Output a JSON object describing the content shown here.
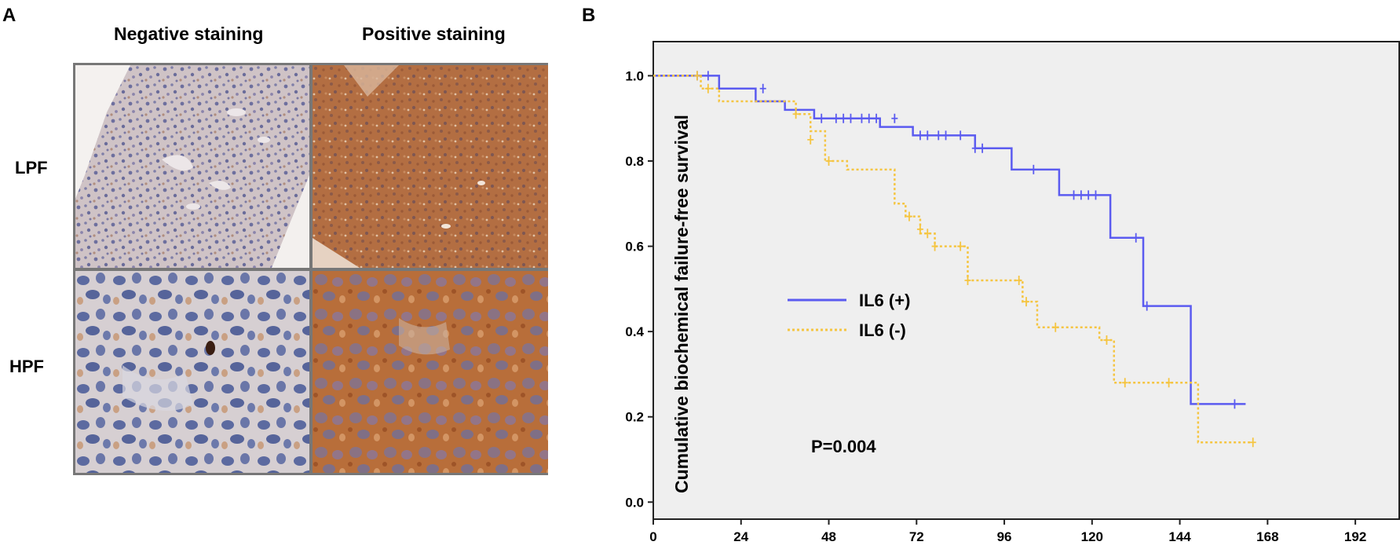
{
  "panel_a": {
    "label": "A",
    "columns": [
      "Negative staining",
      "Positive staining"
    ],
    "rows": [
      "LPF",
      "HPF"
    ]
  },
  "panel_b": {
    "label": "B"
  },
  "chart_data": {
    "type": "line",
    "subtype": "kaplan-meier step",
    "title": "",
    "xlabel": "",
    "ylabel": "Cumulative biochemical failure-free survival",
    "xlim": [
      0,
      204
    ],
    "ylim": [
      -0.04,
      1.08
    ],
    "xticks": [
      0,
      24,
      48,
      72,
      96,
      120,
      144,
      168,
      192
    ],
    "yticks": [
      0.0,
      0.2,
      0.4,
      0.6,
      0.8,
      1.0
    ],
    "ytick_labels": [
      "0.0",
      "0.2",
      "0.4",
      "0.6",
      "0.8",
      "1.0"
    ],
    "legend_position": "middle-left",
    "annotation": "P=0.004",
    "background": "#efefef",
    "series": [
      {
        "name": "IL6 (+)",
        "color": "#5b5bf0",
        "style": "solid",
        "steps": [
          [
            0,
            1.0
          ],
          [
            18,
            0.97
          ],
          [
            28,
            0.94
          ],
          [
            36,
            0.92
          ],
          [
            44,
            0.9
          ],
          [
            62,
            0.88
          ],
          [
            71,
            0.86
          ],
          [
            88,
            0.83
          ],
          [
            98,
            0.78
          ],
          [
            111,
            0.72
          ],
          [
            125,
            0.62
          ],
          [
            134,
            0.46
          ],
          [
            147,
            0.23
          ],
          [
            162,
            0.23
          ]
        ],
        "censored": [
          [
            12,
            1.0
          ],
          [
            15,
            1.0
          ],
          [
            30,
            0.97
          ],
          [
            46,
            0.9
          ],
          [
            50,
            0.9
          ],
          [
            52,
            0.9
          ],
          [
            54,
            0.9
          ],
          [
            57,
            0.9
          ],
          [
            59,
            0.9
          ],
          [
            61,
            0.9
          ],
          [
            66,
            0.9
          ],
          [
            73,
            0.86
          ],
          [
            75,
            0.86
          ],
          [
            78,
            0.86
          ],
          [
            80,
            0.86
          ],
          [
            84,
            0.86
          ],
          [
            88,
            0.83
          ],
          [
            90,
            0.83
          ],
          [
            104,
            0.78
          ],
          [
            115,
            0.72
          ],
          [
            117,
            0.72
          ],
          [
            119,
            0.72
          ],
          [
            121,
            0.72
          ],
          [
            132,
            0.62
          ],
          [
            135,
            0.46
          ],
          [
            159,
            0.23
          ]
        ]
      },
      {
        "name": "IL6 (-)",
        "color": "#f5c542",
        "style": "dotted",
        "steps": [
          [
            0,
            1.0
          ],
          [
            13,
            0.97
          ],
          [
            18,
            0.94
          ],
          [
            39,
            0.91
          ],
          [
            43,
            0.87
          ],
          [
            47,
            0.8
          ],
          [
            53,
            0.78
          ],
          [
            66,
            0.7
          ],
          [
            69,
            0.67
          ],
          [
            73,
            0.63
          ],
          [
            77,
            0.6
          ],
          [
            82,
            0.6
          ],
          [
            86,
            0.52
          ],
          [
            101,
            0.47
          ],
          [
            105,
            0.41
          ],
          [
            122,
            0.38
          ],
          [
            126,
            0.28
          ],
          [
            149,
            0.14
          ],
          [
            164,
            0.14
          ]
        ],
        "censored": [
          [
            12,
            1.0
          ],
          [
            15,
            0.97
          ],
          [
            39,
            0.91
          ],
          [
            43,
            0.85
          ],
          [
            48,
            0.8
          ],
          [
            70,
            0.67
          ],
          [
            73,
            0.64
          ],
          [
            75,
            0.63
          ],
          [
            77,
            0.6
          ],
          [
            84,
            0.6
          ],
          [
            86,
            0.52
          ],
          [
            100,
            0.52
          ],
          [
            102,
            0.47
          ],
          [
            110,
            0.41
          ],
          [
            124,
            0.38
          ],
          [
            129,
            0.28
          ],
          [
            141,
            0.28
          ],
          [
            164,
            0.14
          ]
        ]
      }
    ]
  }
}
